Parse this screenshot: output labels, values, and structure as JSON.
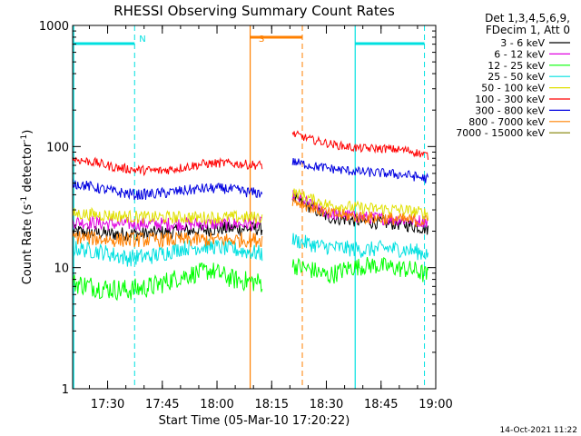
{
  "chart_data": {
    "type": "line",
    "title": "RHESSI Observing Summary Count Rates",
    "xlabel": "Start Time (05-Mar-10 17:20:22)",
    "ylabel": "Count Rate (s",
    "ylabel_sup1": "-1",
    "ylabel_mid": " detector",
    "ylabel_sup2": "-1",
    "ylabel_end": ")",
    "yscale": "log",
    "ylim": [
      1,
      1000
    ],
    "xlim_min": [
      0,
      99.6
    ],
    "x_ticks": [
      {
        "min": 9.6,
        "label": "17:30"
      },
      {
        "min": 24.6,
        "label": "17:45"
      },
      {
        "min": 39.6,
        "label": "18:00"
      },
      {
        "min": 54.6,
        "label": "18:15"
      },
      {
        "min": 69.6,
        "label": "18:30"
      },
      {
        "min": 84.6,
        "label": "18:45"
      },
      {
        "min": 99.6,
        "label": "19:00"
      }
    ],
    "y_ticks": [
      {
        "value": 1,
        "label": "1"
      },
      {
        "value": 10,
        "label": "10"
      },
      {
        "value": 100,
        "label": "100"
      },
      {
        "value": 1000,
        "label": "1000"
      }
    ],
    "legend_header": [
      "Det 1,3,4,5,6,9,",
      "FDecim 1, Att 0"
    ],
    "legend_placement": "right",
    "series": [
      {
        "name": "3 - 6 keV",
        "color": "#000000",
        "points": [
          [
            0,
            20
          ],
          [
            10,
            19
          ],
          [
            20,
            19
          ],
          [
            30,
            20
          ],
          [
            41,
            21
          ],
          [
            52,
            21
          ],
          [
            60.3,
            38
          ],
          [
            70,
            26
          ],
          [
            80,
            24
          ],
          [
            90,
            23
          ],
          [
            97.5,
            21
          ]
        ]
      },
      {
        "name": "6 - 12 keV",
        "color": "#e000e0",
        "points": [
          [
            0,
            24
          ],
          [
            10,
            23
          ],
          [
            20,
            23
          ],
          [
            30,
            23
          ],
          [
            41,
            23
          ],
          [
            52,
            23
          ],
          [
            60.3,
            40
          ],
          [
            70,
            28
          ],
          [
            80,
            26
          ],
          [
            90,
            25
          ],
          [
            97.5,
            24
          ]
        ]
      },
      {
        "name": "12 - 25 keV",
        "color": "#00ff00",
        "points": [
          [
            0,
            7.5
          ],
          [
            8,
            6.8
          ],
          [
            15,
            6.5
          ],
          [
            22,
            7
          ],
          [
            30,
            8.5
          ],
          [
            38,
            9.5
          ],
          [
            44,
            8
          ],
          [
            52,
            7.5
          ],
          [
            60.3,
            10.5
          ],
          [
            66,
            9.5
          ],
          [
            70,
            8.5
          ],
          [
            76,
            10
          ],
          [
            82,
            10.5
          ],
          [
            88,
            10
          ],
          [
            94,
            9.5
          ],
          [
            97.5,
            8.5
          ]
        ]
      },
      {
        "name": "25 - 50 keV",
        "color": "#00e0e0",
        "points": [
          [
            0,
            14.5
          ],
          [
            8,
            13.5
          ],
          [
            15,
            12
          ],
          [
            22,
            12.5
          ],
          [
            30,
            14.5
          ],
          [
            38,
            15
          ],
          [
            45,
            14
          ],
          [
            52,
            13
          ],
          [
            60.3,
            17
          ],
          [
            68,
            15
          ],
          [
            74,
            14.5
          ],
          [
            80,
            14
          ],
          [
            86,
            14.5
          ],
          [
            92,
            14
          ],
          [
            97.5,
            13
          ]
        ]
      },
      {
        "name": "50 - 100 keV",
        "color": "#e0e000",
        "points": [
          [
            0,
            28
          ],
          [
            10,
            27
          ],
          [
            20,
            26
          ],
          [
            30,
            26
          ],
          [
            41,
            26
          ],
          [
            52,
            26
          ],
          [
            60.3,
            42
          ],
          [
            70,
            33
          ],
          [
            80,
            31
          ],
          [
            90,
            30
          ],
          [
            97.5,
            28
          ]
        ]
      },
      {
        "name": "100 - 300 keV",
        "color": "#ff0000",
        "points": [
          [
            0,
            79
          ],
          [
            6,
            74
          ],
          [
            12,
            67
          ],
          [
            18,
            64
          ],
          [
            24,
            63
          ],
          [
            30,
            67
          ],
          [
            36,
            72
          ],
          [
            42,
            73
          ],
          [
            48,
            71
          ],
          [
            52,
            70
          ],
          [
            60.3,
            128
          ],
          [
            66,
            113
          ],
          [
            72,
            103
          ],
          [
            78,
            97
          ],
          [
            86,
            96
          ],
          [
            92,
            93
          ],
          [
            97.5,
            84
          ]
        ]
      },
      {
        "name": "300 - 800 keV",
        "color": "#0000e0",
        "points": [
          [
            0,
            50
          ],
          [
            6,
            46
          ],
          [
            12,
            42
          ],
          [
            18,
            40
          ],
          [
            24,
            41
          ],
          [
            30,
            43
          ],
          [
            36,
            45
          ],
          [
            42,
            45
          ],
          [
            48,
            42
          ],
          [
            52,
            41
          ],
          [
            60.3,
            75
          ],
          [
            66,
            69
          ],
          [
            72,
            65
          ],
          [
            78,
            62
          ],
          [
            86,
            60
          ],
          [
            92,
            58
          ],
          [
            97.5,
            54
          ]
        ]
      },
      {
        "name": "800 - 7000 keV",
        "color": "#ff8000",
        "points": [
          [
            0,
            18
          ],
          [
            10,
            17
          ],
          [
            20,
            17
          ],
          [
            30,
            17
          ],
          [
            41,
            17
          ],
          [
            52,
            17
          ],
          [
            60.3,
            36
          ],
          [
            70,
            28
          ],
          [
            80,
            26
          ],
          [
            90,
            25
          ],
          [
            97.5,
            24
          ]
        ]
      },
      {
        "name": "7000 - 15000 keV",
        "color": "#808000",
        "points": []
      }
    ],
    "annotations": [
      {
        "text": "N",
        "color": "#00e0e0",
        "x_min": 17.0
      },
      {
        "text": "S",
        "color": "#ff8000",
        "x_min": 53.5
      }
    ],
    "footer": "14-Oct-2021 11:22"
  }
}
